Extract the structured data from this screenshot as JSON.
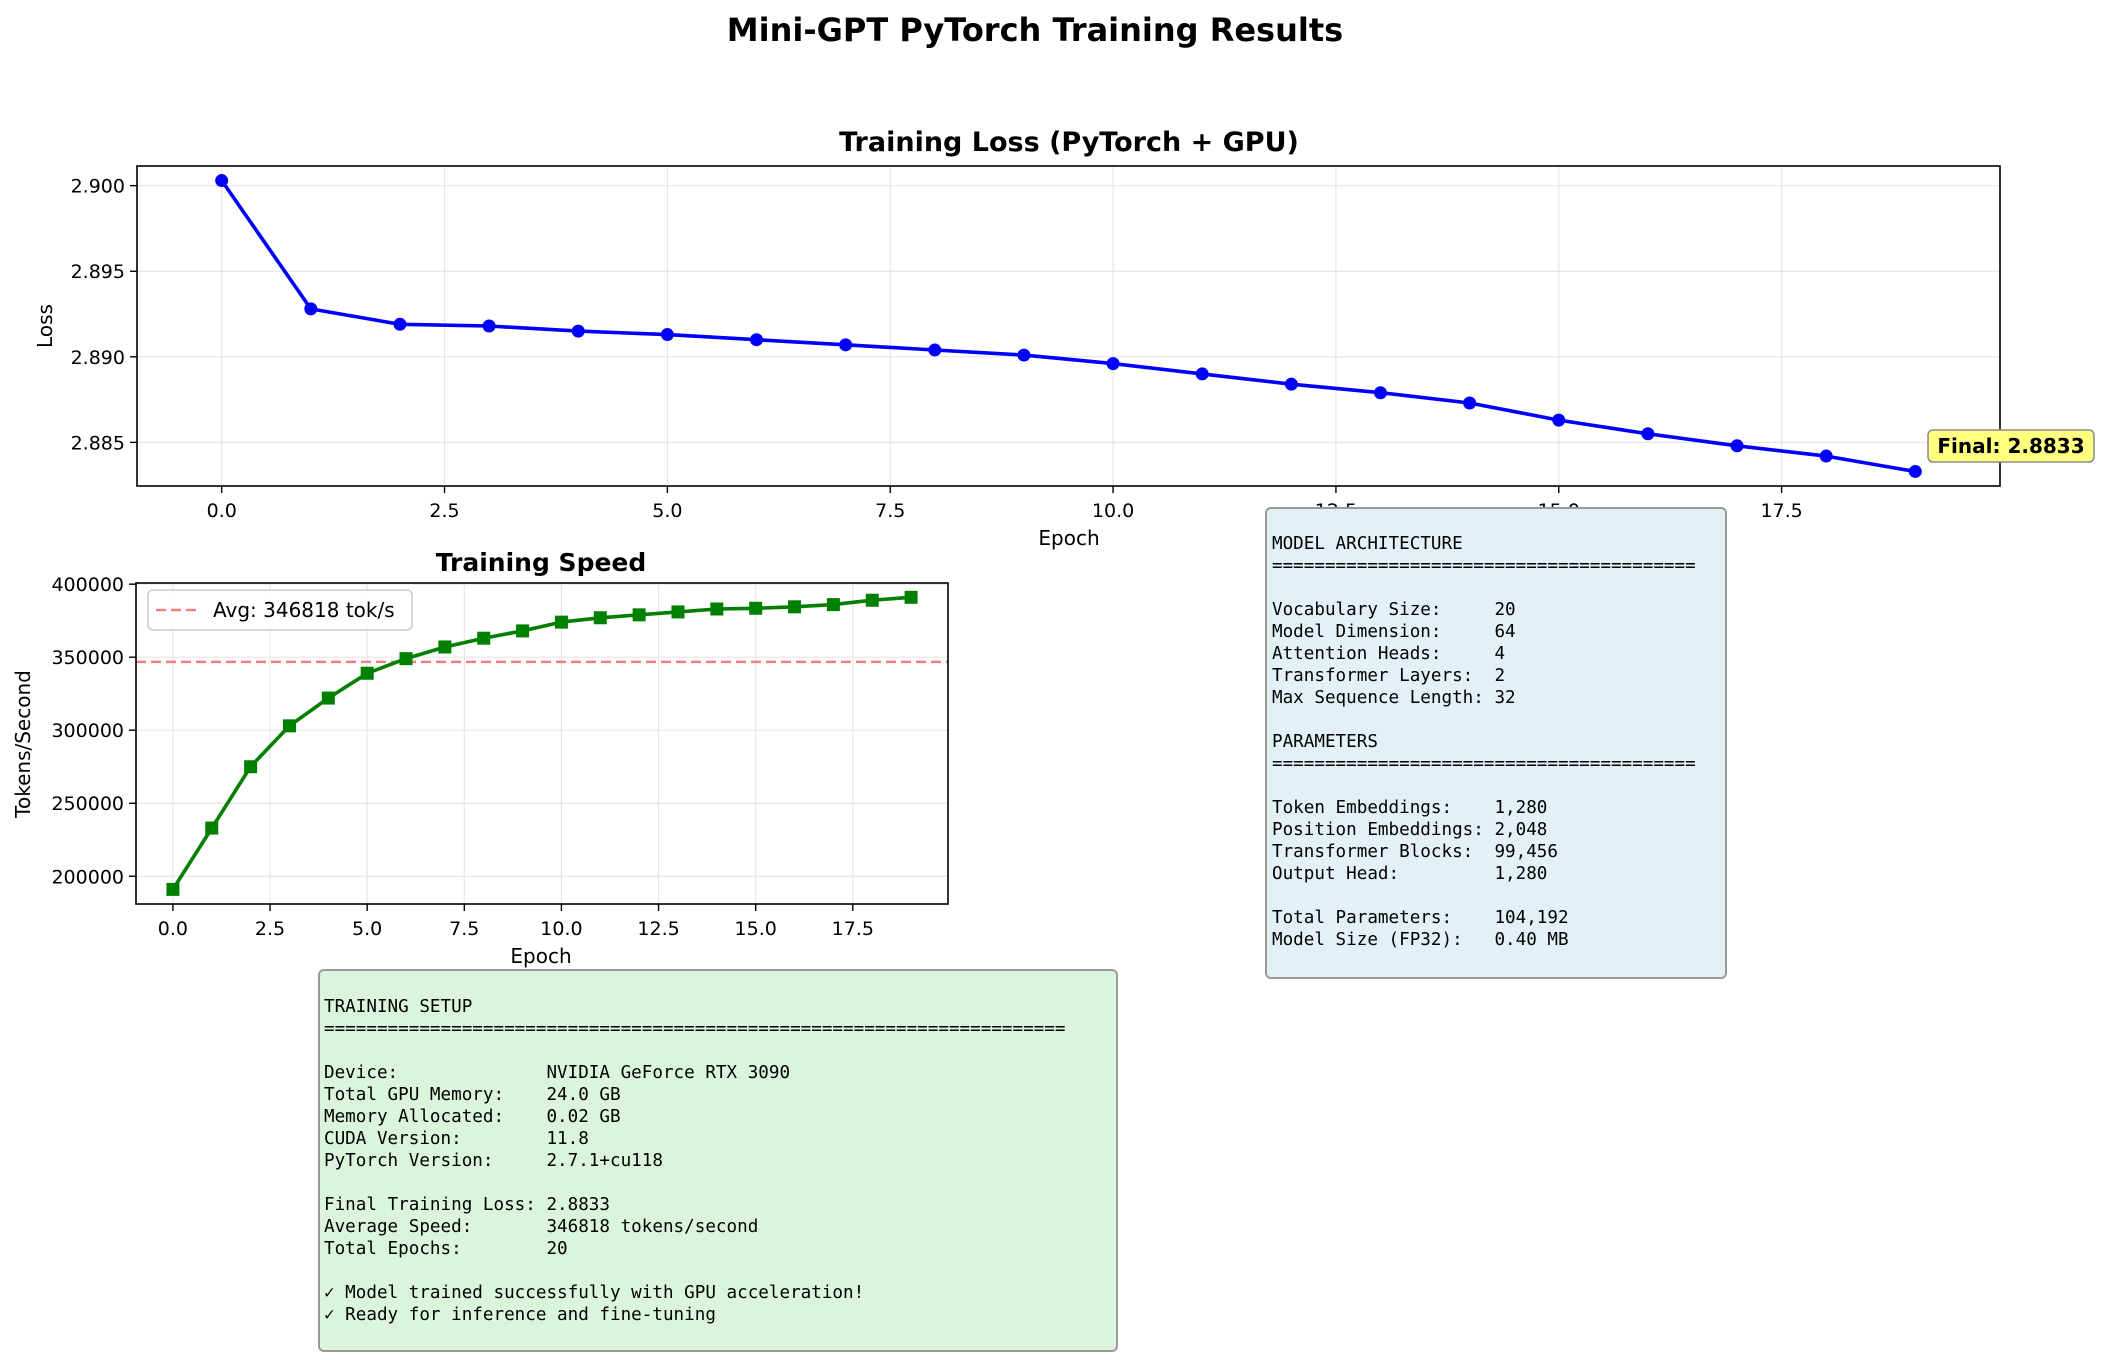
{
  "figure_title": "Mini-GPT PyTorch Training Results",
  "colors": {
    "loss_line": "#0000ff",
    "speed_line": "#008000",
    "avg_line": "#f08080",
    "grid": "#e6e6e6",
    "arch_box_bg": "#e3f1f6",
    "setup_box_bg": "#daf5dc",
    "final_badge_bg": "#ffff80"
  },
  "chart_data": [
    {
      "type": "line",
      "title": "Training Loss (PyTorch + GPU)",
      "xlabel": "Epoch",
      "ylabel": "Loss",
      "x": [
        0,
        1,
        2,
        3,
        4,
        5,
        6,
        7,
        8,
        9,
        10,
        11,
        12,
        13,
        14,
        15,
        16,
        17,
        18,
        19
      ],
      "series": [
        {
          "values": [
            2.9003,
            2.8928,
            2.8919,
            2.8918,
            2.8915,
            2.8913,
            2.891,
            2.8907,
            2.8904,
            2.8901,
            2.8896,
            2.889,
            2.8884,
            2.8879,
            2.8873,
            2.8863,
            2.8855,
            2.8848,
            2.8842,
            2.8833
          ],
          "color": "#0000ff",
          "marker": "circle"
        }
      ],
      "xlim": [
        -0.95,
        19.95
      ],
      "ylim": [
        2.88245,
        2.90115
      ],
      "xticks": [
        0.0,
        2.5,
        5.0,
        7.5,
        10.0,
        12.5,
        15.0,
        17.5
      ],
      "xtick_labels": [
        "0.0",
        "2.5",
        "5.0",
        "7.5",
        "10.0",
        "12.5",
        "15.0",
        "17.5"
      ],
      "yticks": [
        2.885,
        2.89,
        2.895,
        2.9
      ],
      "ytick_labels": [
        "2.885",
        "2.890",
        "2.895",
        "2.900"
      ],
      "grid": true,
      "annotation": {
        "text": "Final: 2.8833",
        "x": 19,
        "y": 2.8833
      }
    },
    {
      "type": "line",
      "title": "Training Speed",
      "xlabel": "Epoch",
      "ylabel": "Tokens/Second",
      "x": [
        0,
        1,
        2,
        3,
        4,
        5,
        6,
        7,
        8,
        9,
        10,
        11,
        12,
        13,
        14,
        15,
        16,
        17,
        18,
        19
      ],
      "series": [
        {
          "values": [
            191000,
            233000,
            275000,
            303000,
            322000,
            339000,
            349000,
            357000,
            363000,
            368000,
            374000,
            377000,
            379000,
            381000,
            383000,
            383500,
            384500,
            386000,
            389000,
            391000
          ],
          "color": "#008000",
          "marker": "square"
        }
      ],
      "reference_line": {
        "label": "Avg: 346818 tok/s",
        "value": 346818,
        "color": "#f08080",
        "style": "dashed"
      },
      "legend": "upper-left",
      "xlim": [
        -0.95,
        19.95
      ],
      "ylim": [
        181000,
        400800
      ],
      "xticks": [
        0.0,
        2.5,
        5.0,
        7.5,
        10.0,
        12.5,
        15.0,
        17.5
      ],
      "xtick_labels": [
        "0.0",
        "2.5",
        "5.0",
        "7.5",
        "10.0",
        "12.5",
        "15.0",
        "17.5"
      ],
      "yticks": [
        200000,
        250000,
        300000,
        350000,
        400000
      ],
      "ytick_labels": [
        "200000",
        "250000",
        "300000",
        "350000",
        "400000"
      ],
      "grid": true
    }
  ],
  "model_architecture_box": {
    "lines": [
      "MODEL ARCHITECTURE",
      "========================================",
      "",
      "Vocabulary Size:     20",
      "Model Dimension:     64",
      "Attention Heads:     4",
      "Transformer Layers:  2",
      "Max Sequence Length: 32",
      "",
      "PARAMETERS",
      "========================================",
      "",
      "Token Embeddings:    1,280",
      "Position Embeddings: 2,048",
      "Transformer Blocks:  99,456",
      "Output Head:         1,280",
      "",
      "Total Parameters:    104,192",
      "Model Size (FP32):   0.40 MB"
    ]
  },
  "training_setup_box": {
    "lines": [
      "TRAINING SETUP",
      "======================================================================",
      "",
      "Device:              NVIDIA GeForce RTX 3090",
      "Total GPU Memory:    24.0 GB",
      "Memory Allocated:    0.02 GB",
      "CUDA Version:        11.8",
      "PyTorch Version:     2.7.1+cu118",
      "",
      "Final Training Loss: 2.8833",
      "Average Speed:       346818 tokens/second",
      "Total Epochs:        20",
      "",
      "✓ Model trained successfully with GPU acceleration!",
      "✓ Ready for inference and fine-tuning"
    ]
  }
}
